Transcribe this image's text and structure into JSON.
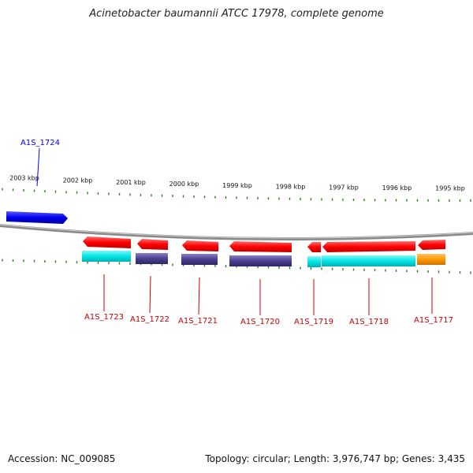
{
  "title": "Acinetobacter baumannii ATCC 17978, complete genome",
  "footer": {
    "accession": "Accession: NC_009085",
    "summary": "Topology: circular; Length: 3,976,747 bp; Genes: 3,435"
  },
  "colors": {
    "forward_gene": "#0000ff",
    "reverse_gene": "#ff0000",
    "tick": "#2e7d1f",
    "backbone": "#888888",
    "cds_cyan": "#00e5e5",
    "cds_purple": "#4a3f8f",
    "cds_orange": "#ff9900"
  },
  "scale": {
    "labels": [
      "2003 kbp",
      "2002 kbp",
      "2001 kbp",
      "2000 kbp",
      "1999 kbp",
      "1998 kbp",
      "1997 kbp",
      "1996 kbp",
      "1995 kbp"
    ]
  },
  "genes": {
    "forward": [
      {
        "label": "A1S_1724"
      }
    ],
    "reverse": [
      {
        "label": "A1S_1723",
        "cds": "cyan"
      },
      {
        "label": "A1S_1722",
        "cds": "purple"
      },
      {
        "label": "A1S_1721",
        "cds": "purple"
      },
      {
        "label": "A1S_1720",
        "cds": "purple"
      },
      {
        "label": "A1S_1719",
        "cds": "cyan"
      },
      {
        "label": "A1S_1718",
        "cds": "cyan"
      },
      {
        "label": "A1S_1717",
        "cds": "orange"
      }
    ]
  }
}
